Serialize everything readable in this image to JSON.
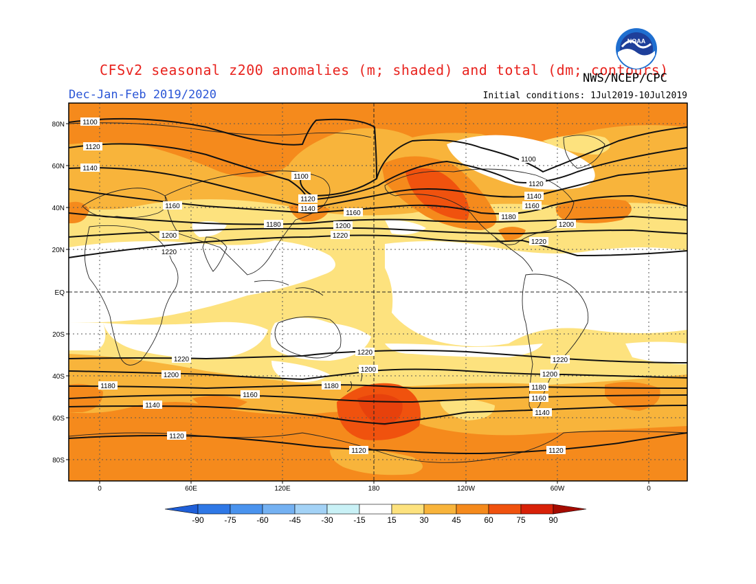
{
  "header": {
    "title": "CFSv2 seasonal z200 anomalies (m; shaded) and total (dm; contours)",
    "agency": "NWS/NCEP/CPC",
    "period": "Dec-Jan-Feb 2019/2020",
    "initial_conditions": "Initial conditions: 1Jul2019-10Jul2019",
    "logo_text": "NOAA"
  },
  "axes": {
    "lat_labels": [
      "80N",
      "60N",
      "40N",
      "20N",
      "EQ",
      "20S",
      "40S",
      "60S",
      "80S"
    ],
    "lon_labels": [
      "0",
      "60E",
      "120E",
      "180",
      "120W",
      "60W",
      "0"
    ]
  },
  "colorbar": {
    "labels": [
      "-90",
      "-75",
      "-60",
      "-45",
      "-30",
      "-15",
      "15",
      "30",
      "45",
      "60",
      "75",
      "90"
    ],
    "colors": [
      "#1f5fd8",
      "#2f78e6",
      "#4a93ee",
      "#74b1f2",
      "#a3d2f6",
      "#c9f1f6",
      "#ffffff",
      "#fde27e",
      "#f8b43b",
      "#f58a1c",
      "#f0520e",
      "#d82108",
      "#a50b00"
    ]
  },
  "contour_labels": {
    "c1100": "1100",
    "c1120": "1120",
    "c1140": "1140",
    "c1160": "1160",
    "c1180": "1180",
    "c1200": "1200",
    "c1220": "1220"
  }
}
